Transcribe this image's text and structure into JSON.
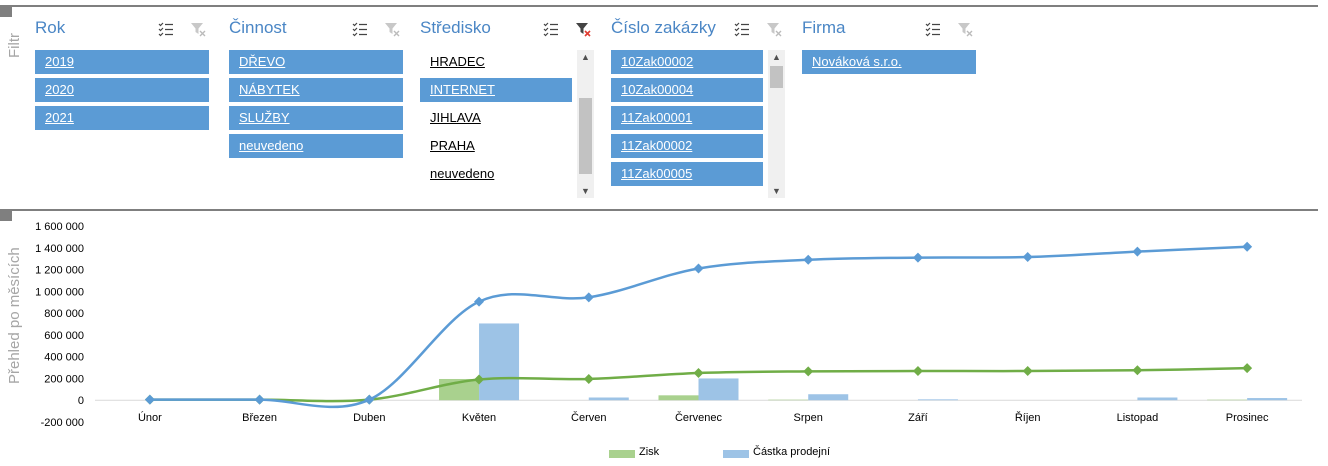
{
  "sections": {
    "filter_label": "Filtr",
    "chart_label": "Přehled po měsících"
  },
  "slicers": [
    {
      "title": "Rok",
      "items": [
        {
          "label": "2019",
          "selected": true
        },
        {
          "label": "2020",
          "selected": true
        },
        {
          "label": "2021",
          "selected": true
        }
      ]
    },
    {
      "title": "Činnost",
      "items": [
        {
          "label": "DŘEVO",
          "selected": true
        },
        {
          "label": "NÁBYTEK",
          "selected": true
        },
        {
          "label": "SLUŽBY",
          "selected": true
        },
        {
          "label": "neuvedeno",
          "selected": true
        }
      ]
    },
    {
      "title": "Středisko",
      "filtered": true,
      "items": [
        {
          "label": "HRADEC",
          "selected": false
        },
        {
          "label": "INTERNET",
          "selected": true
        },
        {
          "label": "JIHLAVA",
          "selected": false
        },
        {
          "label": "PRAHA",
          "selected": false
        },
        {
          "label": "neuvedeno",
          "selected": false
        }
      ]
    },
    {
      "title": "Číslo zakázky",
      "items": [
        {
          "label": "10Zak00002",
          "selected": true
        },
        {
          "label": "10Zak00004",
          "selected": true
        },
        {
          "label": "11Zak00001",
          "selected": true
        },
        {
          "label": "11Zak00002",
          "selected": true
        },
        {
          "label": "11Zak00005",
          "selected": true
        }
      ]
    },
    {
      "title": "Firma",
      "items": [
        {
          "label": "Nováková s.r.o.",
          "selected": true
        }
      ]
    }
  ],
  "chart_data": {
    "type": "bar",
    "categories": [
      "Únor",
      "Březen",
      "Duben",
      "Květen",
      "Červen",
      "Červenec",
      "Srpen",
      "Září",
      "Říjen",
      "Listopad",
      "Prosinec"
    ],
    "ylim": [
      -200000,
      1600000
    ],
    "yticks": [
      "-200 000",
      "0",
      "200 000",
      "400 000",
      "600 000",
      "800 000",
      "1 000 000",
      "1 200 000",
      "1 400 000",
      "1 600 000"
    ],
    "ytick_values": [
      -200000,
      0,
      200000,
      400000,
      600000,
      800000,
      1000000,
      1200000,
      1400000,
      1600000
    ],
    "legend_position": "bottom",
    "grid": false,
    "series": [
      {
        "name": "Zisk",
        "kind": "bar",
        "color": "#a9d18e",
        "values": [
          0,
          0,
          0,
          195000,
          0,
          45000,
          5000,
          0,
          0,
          0,
          5000
        ]
      },
      {
        "name": "Částka prodejní",
        "kind": "bar",
        "color": "#9dc3e6",
        "values": [
          0,
          0,
          0,
          705000,
          25000,
          200000,
          55000,
          8000,
          0,
          25000,
          20000
        ]
      },
      {
        "kind": "line",
        "color": "#70ad47",
        "values": [
          5000,
          5000,
          5000,
          190000,
          195000,
          250000,
          265000,
          268000,
          268000,
          275000,
          295000
        ]
      },
      {
        "kind": "line",
        "color": "#5b9bd5",
        "values": [
          5000,
          5000,
          5000,
          905000,
          945000,
          1210000,
          1290000,
          1310000,
          1315000,
          1365000,
          1410000
        ]
      }
    ]
  }
}
